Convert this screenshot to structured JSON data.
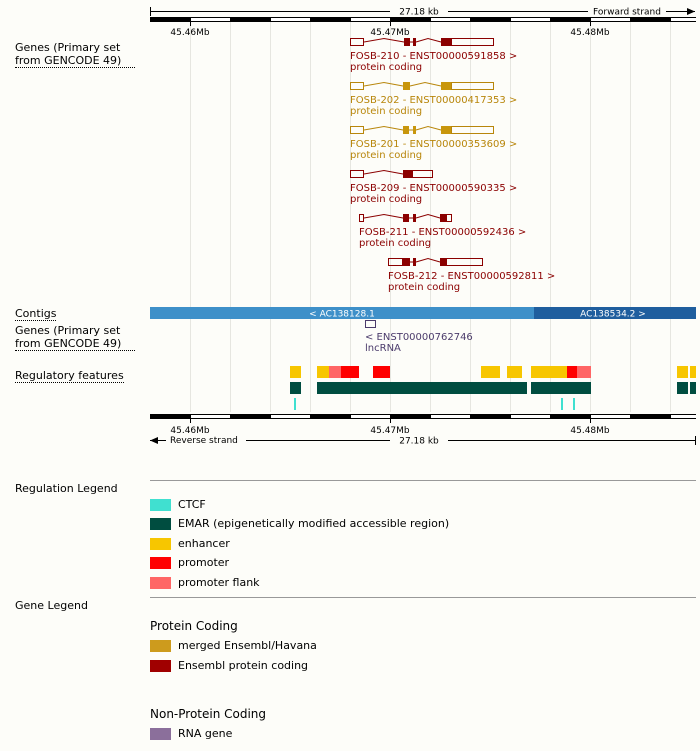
{
  "ruler_top": {
    "span_label": "27.18 kb",
    "strand_label": "Forward strand"
  },
  "ruler_bottom": {
    "span_label": "27.18 kb",
    "strand_label": "Reverse strand"
  },
  "positions": [
    "45.46Mb",
    "45.47Mb",
    "45.48Mb"
  ],
  "tracks": {
    "genes_forward_label": "Genes (Primary set from GENCODE 49)",
    "contigs_label": "Contigs",
    "genes_reverse_label": "Genes (Primary set from GENCODE 49)",
    "regulatory_label": "Regulatory features"
  },
  "transcripts": [
    {
      "name": "FOSB-210 - ENST00000591858 >",
      "biotype": "protein coding",
      "color": "#8b0000"
    },
    {
      "name": "FOSB-202 - ENST00000417353 >",
      "biotype": "protein coding",
      "color": "#b8860b"
    },
    {
      "name": "FOSB-201 - ENST00000353609 >",
      "biotype": "protein coding",
      "color": "#b8860b"
    },
    {
      "name": "FOSB-209 - ENST00000590335 >",
      "biotype": "protein coding",
      "color": "#8b0000"
    },
    {
      "name": "FOSB-211 - ENST00000592436 >",
      "biotype": "protein coding",
      "color": "#8b0000"
    },
    {
      "name": "FOSB-212 - ENST00000592811 >",
      "biotype": "protein coding",
      "color": "#8b0000"
    }
  ],
  "contigs": [
    {
      "label": "< AC138128.1",
      "color": "#3e90c9"
    },
    {
      "label": "AC138534.2 >",
      "color": "#1f5e9e"
    }
  ],
  "reverse_gene": {
    "name": "< ENST00000762746",
    "biotype": "lncRNA",
    "color": "#4b3b6b"
  },
  "regulation_legend": {
    "title": "Regulation Legend",
    "items": [
      {
        "label": "CTCF",
        "color": "#40e0d0"
      },
      {
        "label": "EMAR (epigenetically modified accessible region)",
        "color": "#004d40"
      },
      {
        "label": "enhancer",
        "color": "#f7c600"
      },
      {
        "label": "promoter",
        "color": "#ff0000"
      },
      {
        "label": "promoter flank",
        "color": "#ff6666"
      }
    ]
  },
  "gene_legend": {
    "title": "Gene Legend",
    "protein_coding_title": "Protein Coding",
    "protein_coding_items": [
      {
        "label": "merged Ensembl/Havana",
        "color": "#cd9b1d"
      },
      {
        "label": "Ensembl protein coding",
        "color": "#a00000"
      }
    ],
    "non_protein_title": "Non-Protein Coding",
    "non_protein_items": [
      {
        "label": "RNA gene",
        "color": "#8b6f9b"
      }
    ]
  }
}
